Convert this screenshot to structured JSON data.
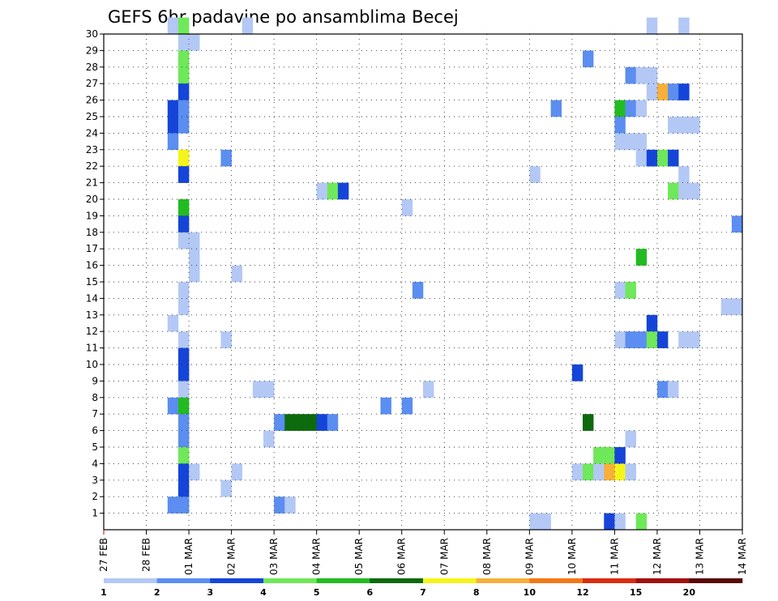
{
  "chart_data": {
    "type": "heatmap",
    "title": "GEFS 6hr padavine po ansamblima Becej",
    "x_tick_labels": [
      "27 FEB",
      "28 FEB",
      "01 MAR",
      "02 MAR",
      "03 MAR",
      "04 MAR",
      "05 MAR",
      "06 MAR",
      "07 MAR",
      "08 MAR",
      "09 MAR",
      "10 MAR",
      "11 MAR",
      "12 MAR",
      "13 MAR",
      "14 MAR"
    ],
    "y_tick_labels": [
      "1",
      "2",
      "3",
      "4",
      "5",
      "6",
      "7",
      "8",
      "9",
      "10",
      "11",
      "12",
      "13",
      "14",
      "15",
      "16",
      "17",
      "18",
      "19",
      "20",
      "21",
      "22",
      "23",
      "24",
      "25",
      "26",
      "27",
      "28",
      "29",
      "30"
    ],
    "xlim_days": [
      0,
      15
    ],
    "time_step_hours": 6,
    "ylim": [
      0,
      30
    ],
    "grid": true,
    "legend": "bottom",
    "colorbar": {
      "labels": [
        "1",
        "2",
        "3",
        "4",
        "5",
        "6",
        "7",
        "8",
        "10",
        "12",
        "15",
        "20"
      ],
      "colors": [
        "#b3c8f5",
        "#5b8ef0",
        "#1545d8",
        "#6fe85a",
        "#22bb22",
        "#0d6a0d",
        "#f5f51a",
        "#f7b03a",
        "#f27818",
        "#d92c10",
        "#a01010",
        "#5a0808"
      ]
    },
    "cells": [
      {
        "member": 30,
        "step": 6,
        "level": 0
      },
      {
        "member": 30,
        "step": 7,
        "level": 3
      },
      {
        "member": 30,
        "step": 13,
        "level": 0
      },
      {
        "member": 30,
        "step": 51,
        "level": 0
      },
      {
        "member": 30,
        "step": 54,
        "level": 0
      },
      {
        "member": 29,
        "step": 7,
        "level": 0
      },
      {
        "member": 29,
        "step": 8,
        "level": 0
      },
      {
        "member": 28,
        "step": 7,
        "level": 3
      },
      {
        "member": 28,
        "step": 45,
        "level": 1
      },
      {
        "member": 27,
        "step": 7,
        "level": 3
      },
      {
        "member": 27,
        "step": 49,
        "level": 1
      },
      {
        "member": 27,
        "step": 50,
        "level": 0
      },
      {
        "member": 27,
        "step": 51,
        "level": 0
      },
      {
        "member": 26,
        "step": 7,
        "level": 2
      },
      {
        "member": 26,
        "step": 51,
        "level": 0
      },
      {
        "member": 26,
        "step": 52,
        "level": 7
      },
      {
        "member": 26,
        "step": 53,
        "level": 1
      },
      {
        "member": 26,
        "step": 54,
        "level": 2
      },
      {
        "member": 25,
        "step": 6,
        "level": 2
      },
      {
        "member": 25,
        "step": 7,
        "level": 1
      },
      {
        "member": 25,
        "step": 42,
        "level": 1
      },
      {
        "member": 25,
        "step": 48,
        "level": 4
      },
      {
        "member": 25,
        "step": 49,
        "level": 1
      },
      {
        "member": 25,
        "step": 50,
        "level": 0
      },
      {
        "member": 24,
        "step": 6,
        "level": 2
      },
      {
        "member": 24,
        "step": 7,
        "level": 1
      },
      {
        "member": 24,
        "step": 48,
        "level": 1
      },
      {
        "member": 24,
        "step": 53,
        "level": 0
      },
      {
        "member": 24,
        "step": 54,
        "level": 0
      },
      {
        "member": 24,
        "step": 55,
        "level": 0
      },
      {
        "member": 23,
        "step": 6,
        "level": 1
      },
      {
        "member": 23,
        "step": 48,
        "level": 0
      },
      {
        "member": 23,
        "step": 49,
        "level": 0
      },
      {
        "member": 23,
        "step": 50,
        "level": 0
      },
      {
        "member": 22,
        "step": 7,
        "level": 6
      },
      {
        "member": 22,
        "step": 11,
        "level": 1
      },
      {
        "member": 22,
        "step": 50,
        "level": 0
      },
      {
        "member": 22,
        "step": 51,
        "level": 2
      },
      {
        "member": 22,
        "step": 52,
        "level": 3
      },
      {
        "member": 22,
        "step": 53,
        "level": 2
      },
      {
        "member": 21,
        "step": 7,
        "level": 2
      },
      {
        "member": 21,
        "step": 40,
        "level": 0
      },
      {
        "member": 21,
        "step": 54,
        "level": 0
      },
      {
        "member": 20,
        "step": 20,
        "level": 0
      },
      {
        "member": 20,
        "step": 21,
        "level": 3
      },
      {
        "member": 20,
        "step": 22,
        "level": 2
      },
      {
        "member": 20,
        "step": 53,
        "level": 3
      },
      {
        "member": 20,
        "step": 54,
        "level": 0
      },
      {
        "member": 20,
        "step": 55,
        "level": 0
      },
      {
        "member": 19,
        "step": 7,
        "level": 4
      },
      {
        "member": 19,
        "step": 28,
        "level": 0
      },
      {
        "member": 18,
        "step": 7,
        "level": 2
      },
      {
        "member": 18,
        "step": 59,
        "level": 1
      },
      {
        "member": 17,
        "step": 7,
        "level": 0
      },
      {
        "member": 17,
        "step": 8,
        "level": 0
      },
      {
        "member": 16,
        "step": 8,
        "level": 0
      },
      {
        "member": 16,
        "step": 50,
        "level": 4
      },
      {
        "member": 15,
        "step": 8,
        "level": 0
      },
      {
        "member": 15,
        "step": 12,
        "level": 0
      },
      {
        "member": 14,
        "step": 7,
        "level": 0
      },
      {
        "member": 14,
        "step": 29,
        "level": 1
      },
      {
        "member": 14,
        "step": 48,
        "level": 0
      },
      {
        "member": 14,
        "step": 49,
        "level": 3
      },
      {
        "member": 13,
        "step": 7,
        "level": 0
      },
      {
        "member": 13,
        "step": 58,
        "level": 0
      },
      {
        "member": 13,
        "step": 59,
        "level": 0
      },
      {
        "member": 12,
        "step": 6,
        "level": 0
      },
      {
        "member": 12,
        "step": 51,
        "level": 2
      },
      {
        "member": 11,
        "step": 7,
        "level": 0
      },
      {
        "member": 11,
        "step": 11,
        "level": 0
      },
      {
        "member": 11,
        "step": 48,
        "level": 0
      },
      {
        "member": 11,
        "step": 49,
        "level": 1
      },
      {
        "member": 11,
        "step": 50,
        "level": 1
      },
      {
        "member": 11,
        "step": 51,
        "level": 3
      },
      {
        "member": 11,
        "step": 52,
        "level": 2
      },
      {
        "member": 11,
        "step": 54,
        "level": 0
      },
      {
        "member": 11,
        "step": 55,
        "level": 0
      },
      {
        "member": 10,
        "step": 7,
        "level": 2
      },
      {
        "member": 9,
        "step": 7,
        "level": 2
      },
      {
        "member": 9,
        "step": 44,
        "level": 2
      },
      {
        "member": 8,
        "step": 7,
        "level": 0
      },
      {
        "member": 8,
        "step": 14,
        "level": 0
      },
      {
        "member": 8,
        "step": 15,
        "level": 0
      },
      {
        "member": 8,
        "step": 30,
        "level": 0
      },
      {
        "member": 8,
        "step": 52,
        "level": 1
      },
      {
        "member": 8,
        "step": 53,
        "level": 0
      },
      {
        "member": 7,
        "step": 6,
        "level": 1
      },
      {
        "member": 7,
        "step": 7,
        "level": 4
      },
      {
        "member": 7,
        "step": 26,
        "level": 1
      },
      {
        "member": 7,
        "step": 28,
        "level": 1
      },
      {
        "member": 6,
        "step": 7,
        "level": 1
      },
      {
        "member": 6,
        "step": 16,
        "level": 1
      },
      {
        "member": 6,
        "step": 17,
        "level": 5
      },
      {
        "member": 6,
        "step": 18,
        "level": 5
      },
      {
        "member": 6,
        "step": 19,
        "level": 5
      },
      {
        "member": 6,
        "step": 20,
        "level": 2
      },
      {
        "member": 6,
        "step": 21,
        "level": 1
      },
      {
        "member": 6,
        "step": 45,
        "level": 5
      },
      {
        "member": 5,
        "step": 7,
        "level": 1
      },
      {
        "member": 5,
        "step": 15,
        "level": 0
      },
      {
        "member": 5,
        "step": 49,
        "level": 0
      },
      {
        "member": 4,
        "step": 7,
        "level": 3
      },
      {
        "member": 4,
        "step": 46,
        "level": 3
      },
      {
        "member": 4,
        "step": 47,
        "level": 3
      },
      {
        "member": 4,
        "step": 48,
        "level": 2
      },
      {
        "member": 3,
        "step": 7,
        "level": 2
      },
      {
        "member": 3,
        "step": 8,
        "level": 0
      },
      {
        "member": 3,
        "step": 12,
        "level": 0
      },
      {
        "member": 3,
        "step": 44,
        "level": 0
      },
      {
        "member": 3,
        "step": 45,
        "level": 3
      },
      {
        "member": 3,
        "step": 46,
        "level": 0
      },
      {
        "member": 3,
        "step": 47,
        "level": 7
      },
      {
        "member": 3,
        "step": 48,
        "level": 6
      },
      {
        "member": 3,
        "step": 49,
        "level": 0
      },
      {
        "member": 2,
        "step": 7,
        "level": 2
      },
      {
        "member": 2,
        "step": 11,
        "level": 0
      },
      {
        "member": 1,
        "step": 6,
        "level": 1
      },
      {
        "member": 1,
        "step": 7,
        "level": 1
      },
      {
        "member": 1,
        "step": 16,
        "level": 1
      },
      {
        "member": 1,
        "step": 17,
        "level": 0
      },
      {
        "member": 0,
        "step": 40,
        "level": 0
      },
      {
        "member": 0,
        "step": 41,
        "level": 0
      },
      {
        "member": 0,
        "step": 47,
        "level": 2
      },
      {
        "member": 0,
        "step": 48,
        "level": 0
      },
      {
        "member": 0,
        "step": 50,
        "level": 3
      }
    ]
  }
}
